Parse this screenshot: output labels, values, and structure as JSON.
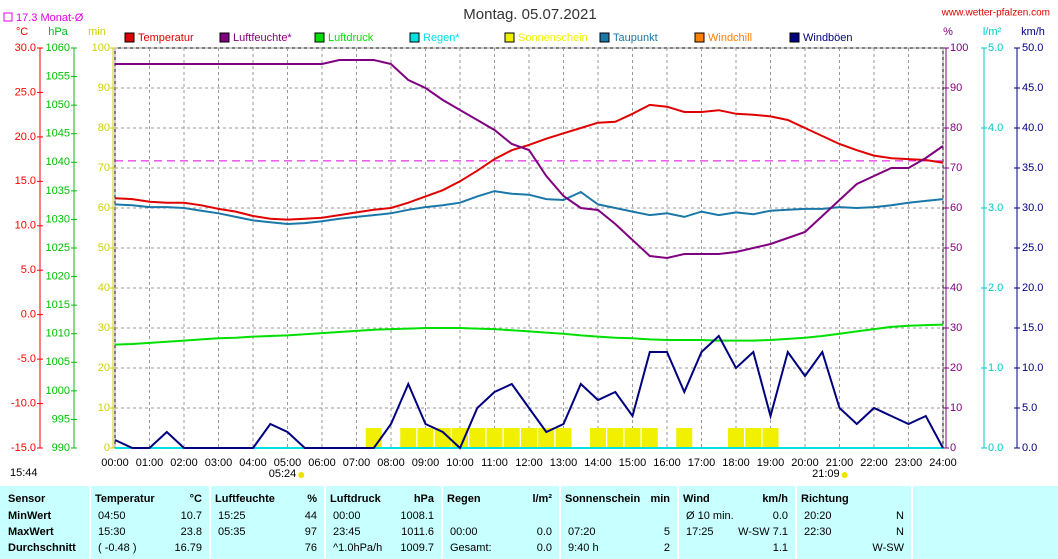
{
  "chart_data": {
    "type": "line",
    "title": "Montag. 05.07.2021",
    "source": "www.wetter-pfalzen.com",
    "updated": "15:44",
    "month_avg": {
      "label": "17.3 Monat-Ø",
      "value": 17.3,
      "color": "#e000e0"
    },
    "sunrise": {
      "label": "05:24",
      "x": 5.4
    },
    "sunset": {
      "label": "21:09",
      "x": 21.15
    },
    "grid": true,
    "xlim": [
      0,
      24
    ],
    "xticks": [
      {
        "value": 0,
        "label": "00:00"
      },
      {
        "value": 1,
        "label": "01:00"
      },
      {
        "value": 2,
        "label": "02:00"
      },
      {
        "value": 3,
        "label": "03:00"
      },
      {
        "value": 4,
        "label": "04:00"
      },
      {
        "value": 5,
        "label": "05:00"
      },
      {
        "value": 6,
        "label": "06:00"
      },
      {
        "value": 7,
        "label": "07:00"
      },
      {
        "value": 8,
        "label": "08:00"
      },
      {
        "value": 9,
        "label": "09:00"
      },
      {
        "value": 10,
        "label": "10:00"
      },
      {
        "value": 11,
        "label": "11:00"
      },
      {
        "value": 12,
        "label": "12:00"
      },
      {
        "value": 13,
        "label": "13:00"
      },
      {
        "value": 14,
        "label": "14:00"
      },
      {
        "value": 15,
        "label": "15:00"
      },
      {
        "value": 16,
        "label": "16:00"
      },
      {
        "value": 17,
        "label": "17:00"
      },
      {
        "value": 18,
        "label": "18:00"
      },
      {
        "value": 19,
        "label": "19:00"
      },
      {
        "value": 20,
        "label": "20:00"
      },
      {
        "value": 21,
        "label": "21:00"
      },
      {
        "value": 22,
        "label": "22:00"
      },
      {
        "value": 23,
        "label": "23:00"
      },
      {
        "value": 24,
        "label": "24:00"
      }
    ],
    "axes": {
      "temp": {
        "unit": "°C",
        "color": "#ff0000",
        "lim": [
          -15,
          30
        ],
        "ticks": [
          {
            "value": -15,
            "label": "-15.0"
          },
          {
            "value": -10,
            "label": "-10.0"
          },
          {
            "value": -5,
            "label": "-5.0"
          },
          {
            "value": 0,
            "label": "0.0"
          },
          {
            "value": 5,
            "label": "5.0"
          },
          {
            "value": 10,
            "label": "10.0"
          },
          {
            "value": 15,
            "label": "15.0"
          },
          {
            "value": 20,
            "label": "20.0"
          },
          {
            "value": 25,
            "label": "25.0"
          },
          {
            "value": 30,
            "label": "30.0"
          }
        ]
      },
      "press": {
        "unit": "hPa",
        "color": "#00c000",
        "lim": [
          990,
          1060
        ],
        "ticks": [
          990,
          995,
          1000,
          1005,
          1010,
          1015,
          1020,
          1025,
          1030,
          1035,
          1040,
          1045,
          1050,
          1055,
          1060
        ]
      },
      "sun": {
        "unit": "min",
        "color": "#d0d000",
        "lim": [
          0,
          100
        ],
        "ticks": [
          0,
          10,
          20,
          30,
          40,
          50,
          60,
          70,
          80,
          90,
          100
        ]
      },
      "hum": {
        "unit": "%",
        "color": "#800080",
        "lim": [
          0,
          100
        ],
        "ticks": [
          0,
          10,
          20,
          30,
          40,
          50,
          60,
          70,
          80,
          90,
          100
        ]
      },
      "rain": {
        "unit": "l/m²",
        "color": "#00c8c8",
        "lim": [
          0,
          5
        ],
        "ticks": [
          {
            "value": 0,
            "label": "0.0"
          },
          {
            "value": 1,
            "label": "1.0"
          },
          {
            "value": 2,
            "label": "2.0"
          },
          {
            "value": 3,
            "label": "3.0"
          },
          {
            "value": 4,
            "label": "4.0"
          },
          {
            "value": 5,
            "label": "5.0"
          }
        ]
      },
      "wind": {
        "unit": "km/h",
        "color": "#000080",
        "lim": [
          0,
          50
        ],
        "ticks": [
          {
            "value": 0,
            "label": "0.0"
          },
          {
            "value": 5,
            "label": "5.0"
          },
          {
            "value": 10,
            "label": "10.0"
          },
          {
            "value": 15,
            "label": "15.0"
          },
          {
            "value": 20,
            "label": "20.0"
          },
          {
            "value": 25,
            "label": "25.0"
          },
          {
            "value": 30,
            "label": "30.0"
          },
          {
            "value": 35,
            "label": "35.0"
          },
          {
            "value": 40,
            "label": "40.0"
          },
          {
            "value": 45,
            "label": "45.0"
          },
          {
            "value": 50,
            "label": "50.0"
          }
        ]
      }
    },
    "x": [
      0,
      0.5,
      1,
      1.5,
      2,
      2.5,
      3,
      3.5,
      4,
      4.5,
      5,
      5.5,
      6,
      6.5,
      7,
      7.5,
      8,
      8.5,
      9,
      9.5,
      10,
      10.5,
      11,
      11.5,
      12,
      12.5,
      13,
      13.5,
      14,
      14.5,
      15,
      15.5,
      16,
      16.5,
      17,
      17.5,
      18,
      18.5,
      19,
      19.5,
      20,
      20.5,
      21,
      21.5,
      22,
      22.5,
      23,
      23.5,
      24
    ],
    "series": [
      {
        "name": "Temperatur",
        "color": "#e00000",
        "axis": "temp",
        "style": "line",
        "values": [
          13.1,
          13.0,
          12.7,
          12.6,
          12.6,
          12.3,
          11.9,
          11.6,
          11.1,
          10.8,
          10.7,
          10.8,
          10.9,
          11.2,
          11.5,
          11.8,
          12.0,
          12.6,
          13.3,
          14.0,
          15.0,
          16.2,
          17.5,
          18.5,
          19.1,
          19.8,
          20.4,
          21.0,
          21.6,
          21.7,
          22.6,
          23.6,
          23.4,
          22.8,
          22.8,
          23.0,
          22.6,
          22.5,
          22.3,
          21.9,
          21.0,
          20.1,
          19.2,
          18.5,
          17.9,
          17.6,
          17.5,
          17.4,
          17.1
        ]
      },
      {
        "name": "Luftfeuchte*",
        "color": "#800080",
        "axis": "hum",
        "style": "line",
        "values": [
          96,
          96,
          96,
          96,
          96,
          96,
          96,
          96,
          96,
          96,
          96,
          96,
          96,
          97,
          97,
          97,
          96,
          92,
          90,
          87,
          84.5,
          82,
          79.5,
          76,
          74.5,
          68,
          63,
          60,
          59.5,
          56,
          52,
          48,
          47.5,
          48.5,
          48.5,
          48.5,
          49,
          50,
          51,
          52.5,
          54,
          58,
          62,
          66,
          68,
          70,
          70,
          72.5,
          75.5
        ]
      },
      {
        "name": "Luftdruck",
        "color": "#00e000",
        "axis": "press",
        "style": "line",
        "values": [
          1008.1,
          1008.2,
          1008.4,
          1008.6,
          1008.8,
          1009.0,
          1009.2,
          1009.3,
          1009.5,
          1009.6,
          1009.7,
          1009.9,
          1010.1,
          1010.3,
          1010.5,
          1010.7,
          1010.8,
          1010.9,
          1011.0,
          1011.0,
          1011.0,
          1010.9,
          1010.8,
          1010.6,
          1010.4,
          1010.2,
          1010.0,
          1009.7,
          1009.5,
          1009.3,
          1009.2,
          1009.0,
          1008.9,
          1008.9,
          1008.9,
          1008.8,
          1008.8,
          1008.8,
          1008.9,
          1009.1,
          1009.3,
          1009.6,
          1010.0,
          1010.4,
          1010.8,
          1011.2,
          1011.4,
          1011.5,
          1011.6
        ]
      },
      {
        "name": "Regen*",
        "color": "#00e0e0",
        "axis": "rain",
        "style": "line",
        "values": [
          0,
          0,
          0,
          0,
          0,
          0,
          0,
          0,
          0,
          0,
          0,
          0,
          0,
          0,
          0,
          0,
          0,
          0,
          0,
          0,
          0,
          0,
          0,
          0,
          0,
          0,
          0,
          0,
          0,
          0,
          0,
          0,
          0,
          0,
          0,
          0,
          0,
          0,
          0,
          0,
          0,
          0,
          0,
          0,
          0,
          0,
          0,
          0,
          0
        ]
      },
      {
        "name": "Sonnenschein",
        "color": "#f0f000",
        "axis": "sun",
        "style": "bar",
        "values": [
          0,
          0,
          0,
          0,
          0,
          0,
          0,
          0,
          0,
          0,
          0,
          0,
          0,
          0,
          0,
          5,
          0,
          5,
          5,
          5,
          5,
          5,
          5,
          5,
          5,
          5,
          5,
          0,
          5,
          5,
          5,
          5,
          0,
          5,
          0,
          0,
          5,
          5,
          5,
          0,
          0,
          0,
          0,
          0,
          0,
          0,
          0,
          0,
          0
        ]
      },
      {
        "name": "Taupunkt",
        "color": "#1a78a8",
        "axis": "temp",
        "style": "line",
        "values": [
          12.4,
          12.3,
          12.1,
          12.1,
          12.0,
          11.7,
          11.4,
          11.0,
          10.6,
          10.4,
          10.2,
          10.3,
          10.5,
          10.8,
          11.0,
          11.2,
          11.4,
          11.8,
          12.1,
          12.3,
          12.6,
          13.3,
          13.9,
          13.6,
          13.5,
          13.0,
          12.9,
          13.8,
          12.4,
          12.0,
          11.6,
          11.2,
          11.4,
          11.0,
          11.6,
          11.2,
          11.5,
          11.3,
          11.7,
          11.8,
          11.9,
          11.9,
          12.1,
          12.0,
          12.1,
          12.3,
          12.6,
          12.8,
          13.0
        ]
      },
      {
        "name": "Windchill",
        "color": "#ff8000",
        "axis": "temp",
        "style": "line",
        "values": [
          null,
          null,
          null,
          null,
          null,
          null,
          null,
          null,
          null,
          null,
          null,
          null,
          null,
          null,
          null,
          null,
          null,
          null,
          null,
          null,
          null,
          null,
          null,
          null,
          null,
          null,
          null,
          null,
          null,
          null,
          null,
          null,
          null,
          null,
          null,
          null,
          null,
          null,
          null,
          null,
          null,
          null,
          null,
          null,
          null,
          null,
          null,
          null,
          null
        ]
      },
      {
        "name": "Windböen",
        "color": "#000080",
        "axis": "wind",
        "style": "line",
        "values": [
          1,
          0,
          0,
          2,
          0,
          0,
          0,
          0,
          0,
          3,
          2,
          0,
          0,
          0,
          0,
          0,
          3,
          8,
          3,
          2,
          0,
          5,
          7,
          8,
          5,
          2,
          3,
          8,
          6,
          7,
          4,
          12,
          12,
          7,
          12,
          14,
          10,
          12,
          4,
          12,
          9,
          12,
          5,
          3,
          5,
          4,
          3,
          4,
          0
        ]
      }
    ]
  },
  "table": {
    "sensor": "Sensor",
    "columns": [
      {
        "name": "Temperatur",
        "unit": "°C"
      },
      {
        "name": "Luftfeuchte",
        "unit": "%"
      },
      {
        "name": "Luftdruck",
        "unit": "hPa"
      },
      {
        "name": "Regen",
        "unit": "l/m²"
      },
      {
        "name": "Sonnenschein",
        "unit": "min"
      },
      {
        "name": "Wind",
        "unit": "km/h"
      },
      {
        "name": "Richtung",
        "unit": null
      }
    ],
    "rows": [
      {
        "label": "MinWert",
        "cells": [
          [
            "04:50",
            "10.7"
          ],
          [
            "15:25",
            "44"
          ],
          [
            "00:00",
            "1008.1"
          ],
          [
            null,
            null
          ],
          [
            null,
            null
          ],
          [
            "Ø 10 min.",
            "0.0"
          ],
          [
            "20:20",
            "N"
          ]
        ]
      },
      {
        "label": "MaxWert",
        "cells": [
          [
            "15:30",
            "23.8"
          ],
          [
            "05:35",
            "97"
          ],
          [
            "23:45",
            "1011.6"
          ],
          [
            "00:00",
            "0.0"
          ],
          [
            "07:20",
            "5"
          ],
          [
            "17:25",
            "W-SW 7.1"
          ],
          [
            "22:30",
            "N"
          ]
        ]
      },
      {
        "label": "Durchschnitt",
        "cells": [
          [
            "( -0.48 )",
            "16.79"
          ],
          [
            null,
            "76"
          ],
          [
            "^1.0hPa/h",
            "1009.7"
          ],
          [
            "Gesamt:",
            "0.0"
          ],
          [
            "9:40 h",
            "2"
          ],
          [
            null,
            "1.1"
          ],
          [
            null,
            "W-SW"
          ]
        ]
      }
    ]
  }
}
